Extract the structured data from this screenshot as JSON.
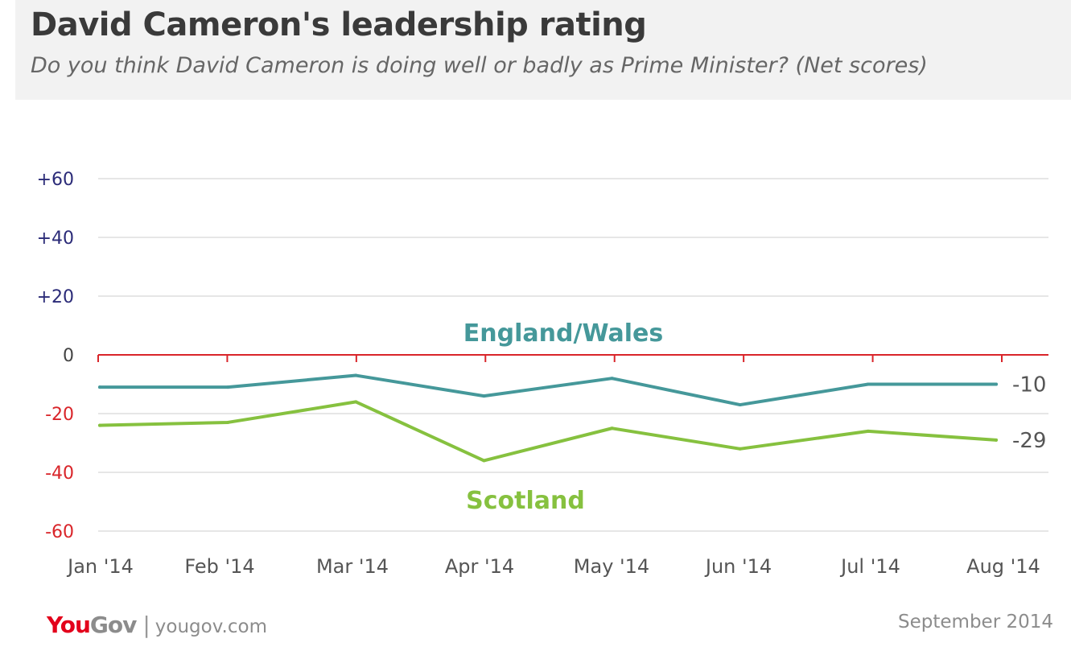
{
  "header": {
    "title": "David Cameron's leadership rating",
    "subtitle": "Do you think David Cameron is doing well or badly as Prime Minister? (Net scores)"
  },
  "footer": {
    "logo_you": "You",
    "logo_gov": "Gov",
    "separator": "|",
    "url": "yougov.com",
    "date": "September 2014"
  },
  "colors": {
    "england_wales": "#45989a",
    "scotland": "#86c13f",
    "zero_line": "#d9252a",
    "positive_ticks": "#2b2b78",
    "negative_ticks": "#d9252a",
    "zero_tick": "#444444",
    "grid": "#dddddd",
    "axis_text": "#555555"
  },
  "chart_data": {
    "type": "line",
    "categories": [
      "Jan '14",
      "Feb '14",
      "Mar '14",
      "Apr '14",
      "May '14",
      "Jun '14",
      "Jul '14",
      "Aug '14"
    ],
    "ylim": [
      -60,
      60
    ],
    "yticks": [
      60,
      40,
      20,
      0,
      -20,
      -40,
      -60
    ],
    "ytick_labels": [
      "+60",
      "+40",
      "+20",
      "0",
      "-20",
      "-40",
      "-60"
    ],
    "grid": true,
    "series": [
      {
        "name": "England/Wales",
        "values": [
          -11,
          -11,
          -7,
          -14,
          -8,
          -17,
          -10,
          -10
        ],
        "end_label": "-10"
      },
      {
        "name": "Scotland",
        "values": [
          -24,
          -23,
          -16,
          -36,
          -25,
          -32,
          -26,
          -29
        ],
        "end_label": "-29"
      }
    ]
  }
}
